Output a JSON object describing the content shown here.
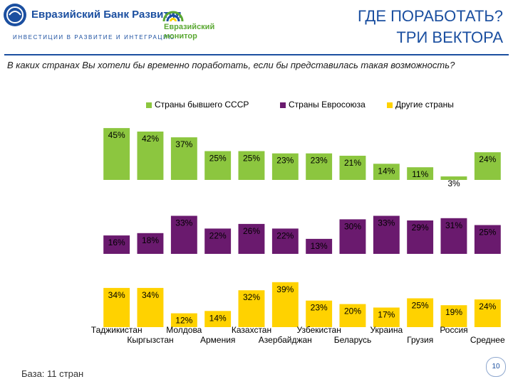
{
  "header": {
    "logo1_name": "Евразийский Банк Развития",
    "logo1_tagline": "ИНВЕСТИЦИИ В РАЗВИТИЕ И ИНТЕГРАЦИЮ",
    "logo2_line1": "Евразийский",
    "logo2_line2": "монитор",
    "title_line1": "ГДЕ ПОРАБОТАТЬ?",
    "title_line2": "ТРИ ВЕКТОРА"
  },
  "question": "В каких странах Вы хотели бы временно поработать, если бы представилась такая возможность?",
  "footer": {
    "base": "База: 11 стран",
    "page": "10"
  },
  "colors": {
    "cis": "#8cc63f",
    "eu": "#6a1a6e",
    "other": "#ffd200",
    "brand_blue": "#1b4fa0",
    "logo_green": "#5aa832"
  },
  "chart_data": {
    "type": "bar",
    "categories": [
      "Таджикистан",
      "Кыргызстан",
      "Молдова",
      "Армения",
      "Казахстан",
      "Азербайджан",
      "Узбекистан",
      "Беларусь",
      "Украина",
      "Грузия",
      "Россия",
      "Среднее"
    ],
    "unit": "%",
    "ylim": [
      0,
      50
    ],
    "legend_position": "top",
    "series": [
      {
        "name": "Страны бывшего СССР",
        "color": "#8cc63f",
        "values": [
          45,
          42,
          37,
          25,
          25,
          23,
          23,
          21,
          14,
          11,
          3,
          24
        ],
        "labels": [
          "45%",
          "42%",
          "37%",
          "25%",
          "25%",
          "23%",
          "23%",
          "21%",
          "14%",
          "11%",
          "3%",
          "24%"
        ]
      },
      {
        "name": "Страны Евросоюза",
        "color": "#6a1a6e",
        "values": [
          16,
          18,
          33,
          22,
          26,
          22,
          13,
          30,
          33,
          29,
          31,
          25
        ],
        "labels": [
          "16%",
          "18%",
          "33%",
          "22%",
          "26%",
          "22%",
          "13%",
          "30%",
          "33%",
          "29%",
          "31%",
          "25%"
        ]
      },
      {
        "name": "Другие страны",
        "color": "#ffd200",
        "values": [
          34,
          34,
          12,
          14,
          32,
          39,
          23,
          20,
          17,
          25,
          19,
          24
        ],
        "labels": [
          "34%",
          "34%",
          "12%",
          "14%",
          "32%",
          "39%",
          "23%",
          "20%",
          "17%",
          "25%",
          "19%",
          "24%"
        ]
      }
    ]
  }
}
